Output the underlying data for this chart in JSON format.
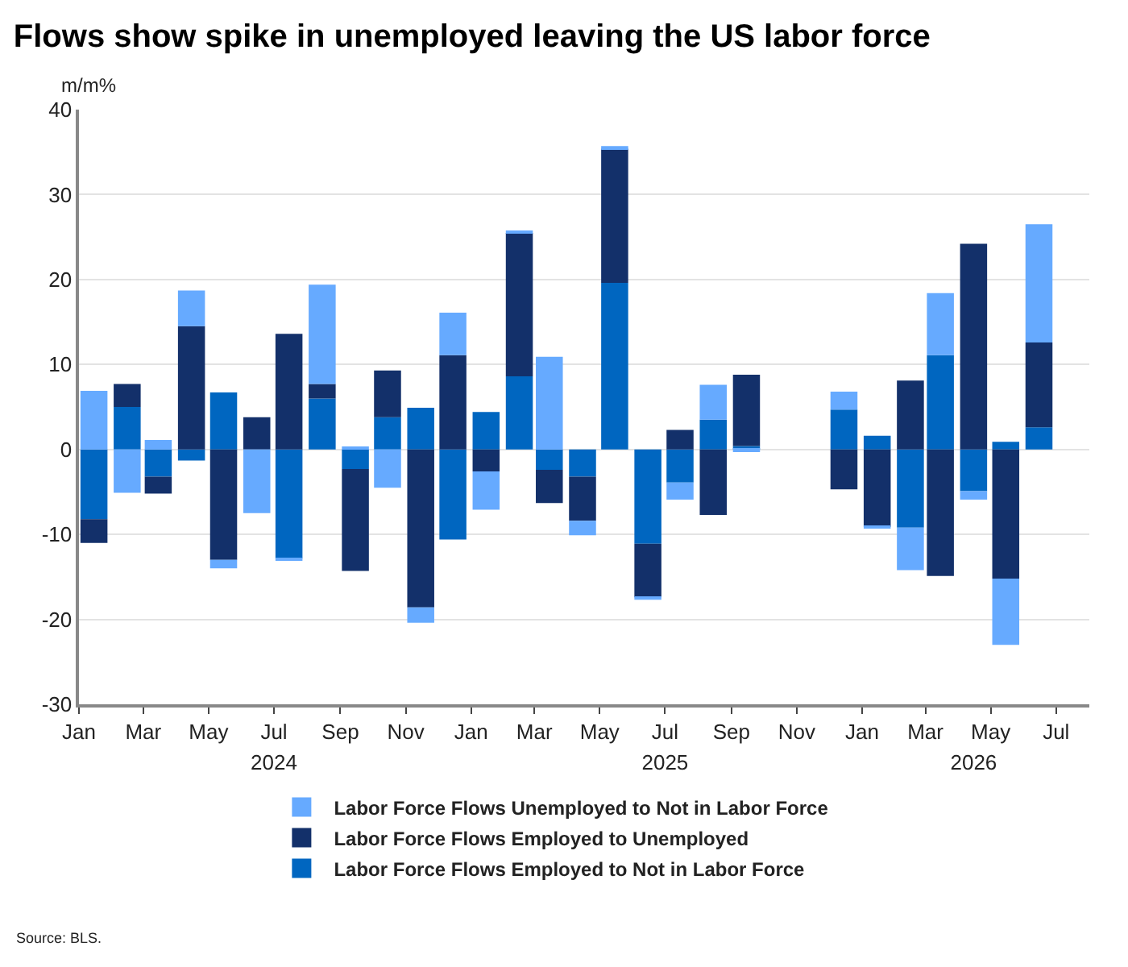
{
  "chart_data": {
    "type": "bar",
    "title": "Flows show spike in unemployed leaving the US labor force",
    "ylabel": "m/m%",
    "stacked": true,
    "legend": "bottom",
    "grid": "y",
    "x": [
      "2024-01-15",
      "2024-02-15",
      "2024-03-15",
      "2024-04-15",
      "2024-05-15",
      "2024-06-15",
      "2024-07-15",
      "2024-08-15",
      "2024-09-15",
      "2024-10-15",
      "2024-11-15",
      "2024-12-15",
      "2025-01-15",
      "2025-02-15",
      "2025-03-15",
      "2025-04-15",
      "2025-05-15",
      "2025-06-15",
      "2025-07-15",
      "2025-08-15",
      "2025-09-15",
      "2025-10-15",
      "2025-11-15",
      "2025-12-15",
      "2026-01-15",
      "2026-02-15",
      "2026-03-15",
      "2026-04-15",
      "2026-05-15",
      "2026-06-15"
    ],
    "series": [
      {
        "name": "Labor Force Flows Employed to Not in Labor Force",
        "color": "#0066c0",
        "values": [
          -8.2,
          5.0,
          -3.2,
          -1.3,
          6.7,
          null,
          -12.8,
          6.0,
          -2.3,
          3.8,
          4.9,
          -10.6,
          4.4,
          8.6,
          -2.4,
          -3.2,
          19.6,
          -11.1,
          -3.9,
          3.5,
          0.4,
          null,
          null,
          4.7,
          1.6,
          -9.2,
          11.1,
          -4.9,
          0.9,
          2.6
        ]
      },
      {
        "name": "Labor Force Flows Employed to Unemployed",
        "color": "#13306a",
        "values": [
          -2.8,
          2.7,
          -2.0,
          14.5,
          -13.0,
          3.8,
          13.6,
          1.7,
          -12.0,
          5.5,
          -18.6,
          11.1,
          -2.6,
          16.9,
          -3.9,
          -5.2,
          15.8,
          -6.3,
          2.3,
          -7.7,
          8.4,
          null,
          null,
          -4.7,
          -9.1,
          8.1,
          -14.9,
          24.2,
          -15.2,
          10.0
        ]
      },
      {
        "name": "Labor Force Flows Unemployed to Not in Labor Force",
        "color": "#66aaff",
        "values": [
          6.9,
          -5.1,
          1.1,
          4.2,
          -1.0,
          -7.5,
          -0.2,
          11.7,
          0.2,
          -4.5,
          -1.8,
          5.0,
          -4.5,
          0.2,
          10.9,
          -1.7,
          0.3,
          -0.3,
          -2.0,
          4.1,
          -0.3,
          null,
          null,
          2.1,
          -0.2,
          -5.0,
          7.3,
          -1.0,
          -7.8,
          13.9
        ]
      }
    ],
    "xlim": [
      "2024-01-01",
      "2026-08-01"
    ],
    "xticks": [
      {
        "value": "2024-01",
        "label": "Jan"
      },
      {
        "value": "2024-03",
        "label": "Mar"
      },
      {
        "value": "2024-05",
        "label": "May"
      },
      {
        "value": "2024-07",
        "label": "Jul"
      },
      {
        "value": "2024-09",
        "label": "Sep"
      },
      {
        "value": "2024-11",
        "label": "Nov"
      },
      {
        "value": "2025-01",
        "label": "Jan"
      },
      {
        "value": "2025-03",
        "label": "Mar"
      },
      {
        "value": "2025-05",
        "label": "May"
      },
      {
        "value": "2025-07",
        "label": "Jul"
      },
      {
        "value": "2025-09",
        "label": "Sep"
      },
      {
        "value": "2025-11",
        "label": "Nov"
      },
      {
        "value": "2026-01",
        "label": "Jan"
      },
      {
        "value": "2026-03",
        "label": "Mar"
      },
      {
        "value": "2026-05",
        "label": "May"
      },
      {
        "value": "2026-07",
        "label": "Jul"
      }
    ],
    "x2lim": [
      "2024-01-01",
      "2026-08-01"
    ],
    "x2ticks": [
      {
        "value": "2024-07",
        "label": "2024"
      },
      {
        "value": "2025-07",
        "label": "2025"
      },
      {
        "value": "2026-04-15",
        "label": "2026"
      }
    ],
    "ylim": [
      -30,
      40
    ],
    "yticks": [
      -30,
      -20,
      -10,
      0,
      10,
      20,
      30,
      40
    ],
    "annotations": [
      "Source: BLS."
    ]
  }
}
